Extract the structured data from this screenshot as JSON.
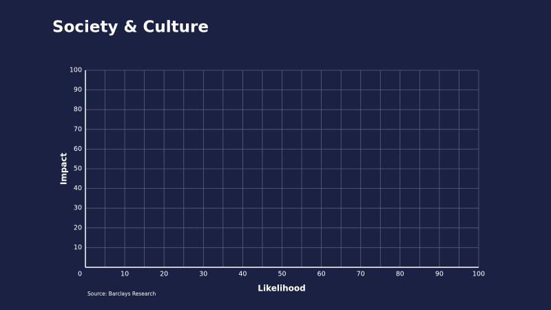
{
  "chart_data": {
    "type": "scatter",
    "title": "Society & Culture",
    "x_label": "Likelihood",
    "y_label": "Impact",
    "source": "Source: Barclays Research",
    "xlim": [
      0,
      100
    ],
    "ylim": [
      0,
      100
    ],
    "xticks": [
      0,
      10,
      20,
      30,
      40,
      50,
      60,
      70,
      80,
      90,
      100
    ],
    "yticks": [
      10,
      20,
      30,
      40,
      50,
      60,
      70,
      80,
      90,
      100
    ],
    "xgridlines": [
      5,
      10,
      15,
      20,
      25,
      30,
      35,
      40,
      45,
      50,
      55,
      60,
      65,
      70,
      75,
      80,
      85,
      90,
      95,
      100
    ],
    "grid": true,
    "grid_color": "#5a6080",
    "background": "#1b2143",
    "text_color": "#ffffff"
  }
}
